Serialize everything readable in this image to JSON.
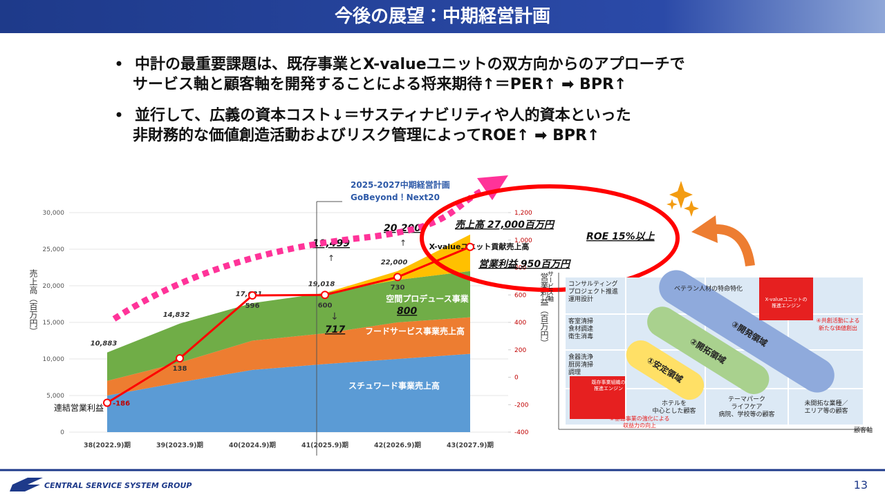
{
  "header": {
    "title": "今後の展望：中期経営計画"
  },
  "bullets": [
    {
      "lines": [
        "中計の最重要課題は、既存事業とX-valueユニットの双方向からのアプローチで",
        "サービス軸と顧客軸を開発することによる将来期待↑＝PER↑ ➡ BPR↑"
      ]
    },
    {
      "lines": [
        "並行して、広義の資本コスト↓＝サスティナビリティや人的資本といった",
        "非財務的な価値創造活動およびリスク管理によってROE↑ ➡ BPR↑"
      ]
    }
  ],
  "chart_data": {
    "type": "area",
    "categories": [
      "38(2022.9)期",
      "39(2023.9)期",
      "40(2024.9)期",
      "41(2025.9)期",
      "42(2026.9)期",
      "43(2027.9)期"
    ],
    "y_label": "売上高（百万円）",
    "y2_label": "営業利益（百万円）",
    "ylim": [
      0,
      30000
    ],
    "yticks": [
      0,
      {
        "value": 5000,
        "label": "5,000"
      },
      {
        "value": 10000,
        "label": "10,000"
      },
      {
        "value": 15000,
        "label": "15,000"
      },
      {
        "value": 20000,
        "label": "20,000"
      },
      {
        "value": 25000,
        "label": "25,000"
      },
      {
        "value": 30000,
        "label": "30,000"
      }
    ],
    "y2lim": [
      -400,
      1200
    ],
    "y2ticks": [
      -400,
      -200,
      0,
      200,
      400,
      600,
      800,
      {
        "value": 1000,
        "label": "1,000"
      },
      {
        "value": 1200,
        "label": "1,200"
      }
    ],
    "series": [
      {
        "name": "スチュワード事業売上高",
        "color": "#5b9bd5",
        "values": [
          5000,
          6800,
          8500,
          9300,
          10000,
          10700
        ]
      },
      {
        "name": "フードサービス事業売上高",
        "color": "#ed7d31",
        "values": [
          2000,
          2700,
          4000,
          4200,
          5000,
          5000
        ]
      },
      {
        "name": "空間プロデュース事業",
        "color": "#70ad47",
        "values": [
          3883,
          5332,
          5131,
          5518,
          5800,
          6300
        ]
      },
      {
        "name": "X-valueユニット貢献売上高",
        "color": "#ffc000",
        "values": [
          0,
          0,
          0,
          0,
          1200,
          5000
        ]
      },
      {
        "name": "連結営業利益",
        "color": "#ff0000",
        "axis": "y2",
        "values": [
          -186,
          138,
          596,
          600,
          730,
          950
        ],
        "value_labels": [
          "-186",
          "138",
          "596",
          "600",
          "730",
          null
        ]
      }
    ],
    "totals": {
      "values": [
        10883,
        14832,
        17631,
        19018,
        22000,
        null
      ],
      "value_labels": [
        "10,883",
        "14,832",
        "17,631",
        "19,018",
        "22,000",
        null
      ]
    },
    "annotations": [
      "2025-2027中期経営計画",
      "GoBeyond！Next20",
      "19,499",
      "20,200",
      "717",
      "800",
      "売上高 27,000百万円",
      "ROE 15%以上",
      "営業利益 950百万円"
    ]
  },
  "diagram": {
    "y_axis": "サービス軸",
    "x_axis": "顧客軸",
    "rows": [
      [
        "コンサルティング",
        "プロジェクト推進",
        "運用設計"
      ],
      [
        "客室清掃",
        "食材調達",
        "衛生消毒"
      ],
      [
        "食器洗浄",
        "厨房清掃",
        "調理"
      ]
    ],
    "columns": [
      [
        "ホテルを",
        "中心とした顧客"
      ],
      [
        "テーマパーク",
        "ライフケア",
        "病院、学校等の顧客"
      ],
      [
        "未開拓な業種／",
        "エリア等の顧客"
      ]
    ],
    "zones": [
      "①安定領域",
      "②開拓領域",
      "③開発領域"
    ],
    "veteran": "ベテラン人材の特命特化",
    "engine_xvalue": [
      "X-valueユニットの",
      "推進エンジン"
    ],
    "engine_existing": [
      "既存事業組織の",
      "推進エンジン"
    ],
    "note_1": [
      "①基軸事業の強化による",
      "収益力の向上"
    ],
    "note_4": [
      "④共創活動による",
      "新たな価値創出"
    ]
  },
  "footer": {
    "company": "CENTRAL SERVICE SYSTEM GROUP",
    "page": "13"
  }
}
